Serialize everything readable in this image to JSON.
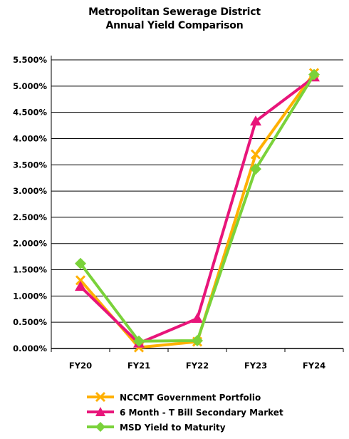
{
  "title_line1": "Metropolitan Sewerage District",
  "title_line2": "Annual Yield Comparison",
  "chart_data": {
    "type": "line",
    "title": "Metropolitan Sewerage District Annual Yield Comparison",
    "categories": [
      "FY20",
      "FY21",
      "FY22",
      "FY23",
      "FY24"
    ],
    "y_ticks": [
      "0.000%",
      "0.500%",
      "1.000%",
      "1.500%",
      "2.000%",
      "2.500%",
      "3.000%",
      "3.500%",
      "4.000%",
      "4.500%",
      "5.000%",
      "5.500%"
    ],
    "ylim": [
      0,
      5.5
    ],
    "grid": true,
    "legend_position": "bottom",
    "series": [
      {
        "name": "NCCMT Government Portfolio",
        "color": "#ffb000",
        "marker": "x",
        "values": [
          1.3,
          0.02,
          0.13,
          3.7,
          5.25
        ]
      },
      {
        "name": "6 Month - T Bill Secondary Market",
        "color": "#e8157a",
        "marker": "triangle",
        "values": [
          1.18,
          0.1,
          0.57,
          4.33,
          5.17
        ]
      },
      {
        "name": "MSD Yield to Maturity",
        "color": "#7ad23a",
        "marker": "diamond",
        "values": [
          1.62,
          0.14,
          0.15,
          3.42,
          5.22
        ]
      }
    ]
  }
}
